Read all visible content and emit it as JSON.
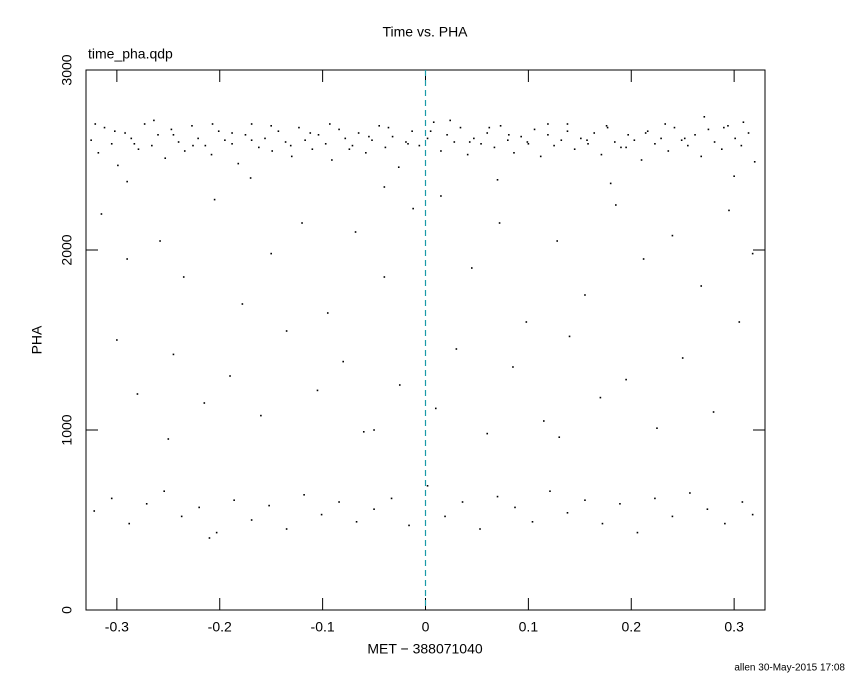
{
  "chart_data": {
    "type": "scatter",
    "title": "Time vs. PHA",
    "subtitle": "time_pha.qdp",
    "xlabel": "MET − 388071040",
    "ylabel": "PHA",
    "footer": "allen 30-May-2015 17:08",
    "color": "#000000",
    "vline": 0,
    "vline_color": "#1a9ba8",
    "xlim": [
      -0.33,
      0.33
    ],
    "ylim": [
      0,
      3000
    ],
    "xticks": [
      -0.3,
      -0.2,
      -0.1,
      0,
      0.1,
      0.2,
      0.3
    ],
    "yticks": [
      0,
      1000,
      2000,
      3000
    ],
    "x": [
      -0.325,
      -0.318,
      -0.312,
      -0.305,
      -0.299,
      -0.292,
      -0.286,
      -0.279,
      -0.273,
      -0.266,
      -0.26,
      -0.253,
      -0.247,
      -0.24,
      -0.234,
      -0.227,
      -0.221,
      -0.214,
      -0.208,
      -0.201,
      -0.195,
      -0.188,
      -0.182,
      -0.175,
      -0.169,
      -0.162,
      -0.156,
      -0.149,
      -0.143,
      -0.136,
      -0.13,
      -0.123,
      -0.117,
      -0.11,
      -0.104,
      -0.097,
      -0.091,
      -0.084,
      -0.078,
      -0.071,
      -0.065,
      -0.058,
      -0.052,
      -0.045,
      -0.039,
      -0.032,
      -0.026,
      -0.019,
      -0.013,
      -0.006,
      0.002,
      0.008,
      0.015,
      0.021,
      0.028,
      0.034,
      0.041,
      0.047,
      0.054,
      0.06,
      0.067,
      0.073,
      0.08,
      0.086,
      0.093,
      0.099,
      0.106,
      0.112,
      0.119,
      0.125,
      0.132,
      0.138,
      0.145,
      0.151,
      0.158,
      0.164,
      0.171,
      0.177,
      0.184,
      0.19,
      0.197,
      0.203,
      0.21,
      0.216,
      0.223,
      0.229,
      0.236,
      0.242,
      0.249,
      0.255,
      0.262,
      0.268,
      0.275,
      0.281,
      0.288,
      0.294,
      0.301,
      0.307,
      0.314,
      0.32,
      -0.321,
      -0.302,
      -0.283,
      -0.264,
      -0.245,
      -0.226,
      -0.207,
      -0.188,
      -0.169,
      -0.15,
      -0.131,
      -0.112,
      -0.093,
      -0.074,
      -0.055,
      -0.036,
      -0.017,
      0.005,
      0.024,
      0.043,
      0.062,
      0.081,
      0.1,
      0.119,
      0.138,
      0.157,
      0.176,
      0.195,
      0.214,
      0.233,
      0.252,
      0.271,
      0.29,
      0.309,
      -0.29,
      -0.17,
      -0.04,
      0.07,
      0.18,
      0.3,
      -0.315,
      -0.29,
      -0.258,
      -0.235,
      -0.205,
      -0.178,
      -0.15,
      -0.12,
      -0.095,
      -0.068,
      -0.04,
      -0.012,
      0.015,
      0.045,
      0.072,
      0.098,
      0.128,
      0.155,
      0.185,
      0.212,
      0.24,
      0.268,
      0.295,
      0.318,
      -0.3,
      -0.245,
      -0.19,
      -0.135,
      -0.08,
      -0.025,
      0.03,
      0.085,
      0.14,
      0.195,
      0.25,
      0.305,
      -0.28,
      -0.215,
      -0.16,
      -0.105,
      -0.05,
      0.01,
      0.06,
      0.115,
      0.17,
      0.225,
      0.28,
      -0.25,
      -0.06,
      0.13,
      -0.322,
      -0.305,
      -0.288,
      -0.271,
      -0.254,
      -0.237,
      -0.22,
      -0.203,
      -0.186,
      -0.169,
      -0.152,
      -0.135,
      -0.118,
      -0.101,
      -0.084,
      -0.067,
      -0.05,
      -0.033,
      -0.016,
      0.002,
      0.019,
      0.036,
      0.053,
      0.07,
      0.087,
      0.104,
      0.121,
      0.138,
      0.155,
      0.172,
      0.189,
      0.206,
      0.223,
      0.24,
      0.257,
      0.274,
      0.291,
      0.308,
      0.318,
      -0.21
    ],
    "values": [
      2610,
      2540,
      2680,
      2590,
      2470,
      2650,
      2620,
      2560,
      2700,
      2580,
      2640,
      2510,
      2670,
      2600,
      2550,
      2690,
      2620,
      2580,
      2530,
      2660,
      2610,
      2590,
      2480,
      2640,
      2700,
      2570,
      2620,
      2550,
      2660,
      2600,
      2520,
      2680,
      2610,
      2560,
      2640,
      2590,
      2500,
      2670,
      2620,
      2580,
      2650,
      2540,
      2610,
      2690,
      2570,
      2630,
      2460,
      2600,
      2660,
      2580,
      2620,
      2710,
      2550,
      2640,
      2600,
      2680,
      2530,
      2620,
      2590,
      2650,
      2570,
      2690,
      2610,
      2540,
      2630,
      2600,
      2670,
      2520,
      2640,
      2580,
      2610,
      2700,
      2560,
      2620,
      2590,
      2650,
      2530,
      2680,
      2600,
      2570,
      2640,
      2610,
      2500,
      2660,
      2590,
      2620,
      2550,
      2680,
      2610,
      2580,
      2640,
      2520,
      2670,
      2600,
      2560,
      2690,
      2620,
      2580,
      2650,
      2490,
      2700,
      2660,
      2590,
      2720,
      2640,
      2580,
      2700,
      2650,
      2610,
      2690,
      2580,
      2650,
      2700,
      2560,
      2630,
      2680,
      2590,
      2660,
      2720,
      2600,
      2680,
      2640,
      2590,
      2700,
      2660,
      2610,
      2690,
      2570,
      2650,
      2700,
      2620,
      2740,
      2680,
      2710,
      2380,
      2400,
      2350,
      2390,
      2370,
      2410,
      2200,
      1950,
      2050,
      1850,
      2280,
      1700,
      1980,
      2150,
      1650,
      2100,
      1850,
      2230,
      2300,
      1900,
      2150,
      1600,
      2050,
      1750,
      2250,
      1950,
      2080,
      1800,
      2220,
      1980,
      1500,
      1420,
      1300,
      1550,
      1380,
      1250,
      1450,
      1350,
      1520,
      1280,
      1400,
      1600,
      1200,
      1150,
      1080,
      1220,
      1000,
      1120,
      980,
      1050,
      1180,
      1010,
      1100,
      950,
      990,
      960,
      550,
      620,
      480,
      590,
      660,
      520,
      570,
      430,
      610,
      500,
      580,
      450,
      640,
      530,
      600,
      490,
      560,
      620,
      470,
      690,
      520,
      600,
      450,
      630,
      570,
      490,
      660,
      540,
      610,
      480,
      590,
      430,
      620,
      520,
      650,
      560,
      480,
      600,
      530,
      400
    ]
  }
}
